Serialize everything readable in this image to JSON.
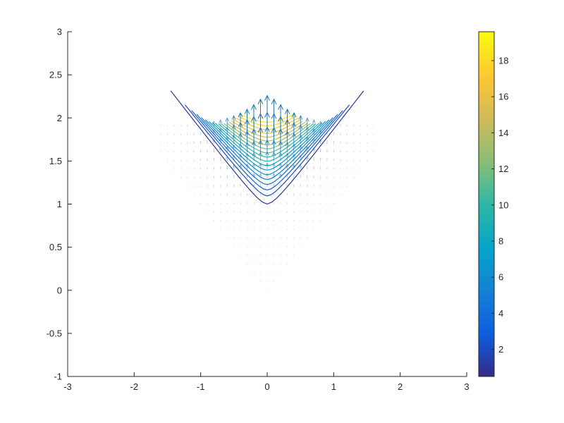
{
  "chart_data": {
    "type": "contour-quiver",
    "title": "",
    "xlabel": "",
    "ylabel": "",
    "xlim": [
      -3,
      3
    ],
    "ylim": [
      -1,
      3
    ],
    "x_ticks": [
      "-3",
      "-2",
      "-1",
      "0",
      "1",
      "2",
      "3"
    ],
    "y_ticks": [
      "-1",
      "-0.5",
      "0",
      "0.5",
      "1",
      "1.5",
      "2",
      "2.5",
      "3"
    ],
    "grid": false,
    "field": {
      "domain": "wedge region with apex at (0, 1.0), opening upward between lines y = 1 + |x| and spanning up to y ≈ 2.0",
      "contour_levels": [
        1,
        2,
        3,
        4,
        5,
        6,
        7,
        8,
        9,
        10,
        11,
        12,
        13,
        14,
        15,
        16,
        17,
        18,
        19
      ],
      "peak": {
        "x": 0,
        "y": 1.95,
        "value": 19.5
      },
      "quiver_rows_y": [
        0.0,
        0.1,
        0.2,
        0.3,
        0.4,
        0.5,
        0.6,
        0.7,
        0.8,
        0.9,
        1.0,
        1.1,
        1.2,
        1.3,
        1.4,
        1.5,
        1.6,
        1.7,
        1.8,
        1.9
      ]
    },
    "colorbar": {
      "range": [
        0.5,
        19.6
      ],
      "ticks": [
        "2",
        "4",
        "6",
        "8",
        "10",
        "12",
        "14",
        "16",
        "18"
      ],
      "colormap": "parula",
      "placement": "right"
    },
    "quiver_color": "#1f77b4"
  }
}
